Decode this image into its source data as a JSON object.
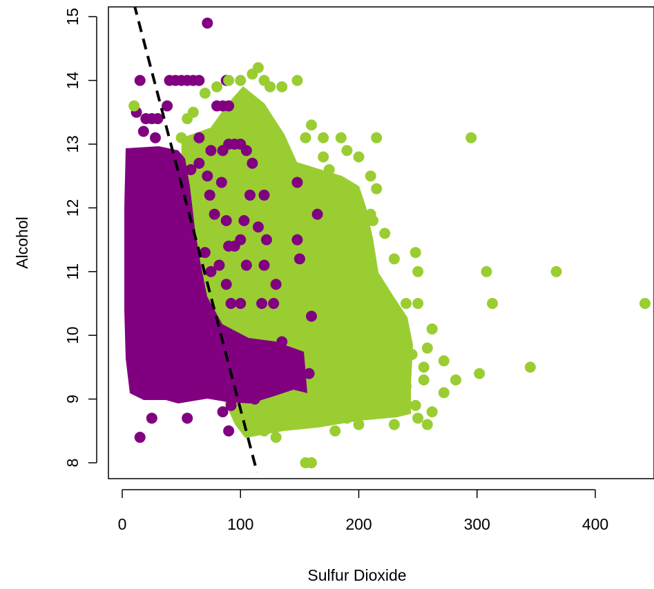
{
  "chart_data": {
    "type": "scatter",
    "xlabel": "Sulfur Dioxide",
    "ylabel": "Alcohol",
    "xlim": [
      -10,
      450
    ],
    "ylim": [
      7.75,
      15.2
    ],
    "x_ticks": [
      0,
      100,
      200,
      300,
      400
    ],
    "y_ticks": [
      8,
      9,
      10,
      11,
      12,
      13,
      14,
      15
    ],
    "colors": {
      "purple": "#800080",
      "green": "#9acd32",
      "line": "#000000"
    },
    "series": [
      {
        "color": "#800080",
        "points": [
          [
            72,
            14.9
          ],
          [
            15,
            14.0
          ],
          [
            40,
            14.0
          ],
          [
            45,
            14.0
          ],
          [
            50,
            14.0
          ],
          [
            55,
            14.0
          ],
          [
            60,
            14.0
          ],
          [
            65,
            14.0
          ],
          [
            88,
            14.0
          ],
          [
            80,
            13.6
          ],
          [
            85,
            13.6
          ],
          [
            90,
            13.6
          ],
          [
            38,
            13.6
          ],
          [
            12,
            13.5
          ],
          [
            20,
            13.4
          ],
          [
            25,
            13.4
          ],
          [
            30,
            13.4
          ],
          [
            18,
            13.2
          ],
          [
            28,
            13.1
          ],
          [
            65,
            13.1
          ],
          [
            75,
            12.9
          ],
          [
            85,
            12.9
          ],
          [
            90,
            13.0
          ],
          [
            95,
            13.0
          ],
          [
            100,
            13.0
          ],
          [
            105,
            12.9
          ],
          [
            110,
            12.7
          ],
          [
            65,
            12.7
          ],
          [
            58,
            12.6
          ],
          [
            72,
            12.5
          ],
          [
            84,
            12.4
          ],
          [
            148,
            12.4
          ],
          [
            108,
            12.2
          ],
          [
            120,
            12.2
          ],
          [
            74,
            12.2
          ],
          [
            78,
            11.9
          ],
          [
            88,
            11.8
          ],
          [
            103,
            11.8
          ],
          [
            165,
            11.9
          ],
          [
            115,
            11.7
          ],
          [
            122,
            11.5
          ],
          [
            100,
            11.5
          ],
          [
            90,
            11.4
          ],
          [
            95,
            11.4
          ],
          [
            148,
            11.5
          ],
          [
            150,
            11.2
          ],
          [
            70,
            11.3
          ],
          [
            105,
            11.1
          ],
          [
            82,
            11.1
          ],
          [
            120,
            11.1
          ],
          [
            75,
            11.0
          ],
          [
            88,
            10.8
          ],
          [
            130,
            10.8
          ],
          [
            118,
            10.5
          ],
          [
            128,
            10.5
          ],
          [
            160,
            10.3
          ],
          [
            100,
            10.5
          ],
          [
            92,
            10.5
          ],
          [
            135,
            9.9
          ],
          [
            110,
            9.7
          ],
          [
            130,
            9.7
          ],
          [
            115,
            9.6
          ],
          [
            125,
            9.5
          ],
          [
            145,
            9.7
          ],
          [
            150,
            9.5
          ],
          [
            158,
            9.4
          ],
          [
            135,
            9.2
          ],
          [
            145,
            9.3
          ],
          [
            112,
            9.0
          ],
          [
            85,
            8.8
          ],
          [
            92,
            8.9
          ],
          [
            25,
            8.7
          ],
          [
            55,
            8.7
          ],
          [
            90,
            8.5
          ],
          [
            15,
            8.4
          ],
          [
            95,
            9.6
          ],
          [
            70,
            9.8
          ]
        ]
      },
      {
        "color": "#9acd32",
        "points": [
          [
            10,
            13.6
          ],
          [
            70,
            13.8
          ],
          [
            80,
            13.9
          ],
          [
            90,
            14.0
          ],
          [
            100,
            14.0
          ],
          [
            110,
            14.1
          ],
          [
            115,
            14.2
          ],
          [
            120,
            14.0
          ],
          [
            125,
            13.9
          ],
          [
            135,
            13.9
          ],
          [
            148,
            14.0
          ],
          [
            60,
            13.5
          ],
          [
            55,
            13.4
          ],
          [
            50,
            13.1
          ],
          [
            160,
            13.3
          ],
          [
            155,
            13.1
          ],
          [
            170,
            13.1
          ],
          [
            185,
            13.1
          ],
          [
            215,
            13.1
          ],
          [
            295,
            13.1
          ],
          [
            190,
            12.9
          ],
          [
            200,
            12.8
          ],
          [
            210,
            12.5
          ],
          [
            215,
            12.3
          ],
          [
            210,
            11.9
          ],
          [
            212,
            11.8
          ],
          [
            222,
            11.6
          ],
          [
            230,
            11.2
          ],
          [
            248,
            11.3
          ],
          [
            250,
            11.0
          ],
          [
            240,
            10.5
          ],
          [
            250,
            10.5
          ],
          [
            262,
            10.1
          ],
          [
            258,
            9.8
          ],
          [
            255,
            9.5
          ],
          [
            255,
            9.3
          ],
          [
            248,
            8.9
          ],
          [
            250,
            8.7
          ],
          [
            258,
            8.6
          ],
          [
            262,
            8.8
          ],
          [
            272,
            9.1
          ],
          [
            272,
            9.6
          ],
          [
            282,
            9.3
          ],
          [
            302,
            9.4
          ],
          [
            308,
            11.0
          ],
          [
            313,
            10.5
          ],
          [
            345,
            9.5
          ],
          [
            367,
            11.0
          ],
          [
            442,
            10.5
          ],
          [
            160,
            8.0
          ],
          [
            155,
            8.0
          ],
          [
            130,
            8.4
          ],
          [
            120,
            8.5
          ],
          [
            110,
            8.6
          ],
          [
            180,
            8.5
          ],
          [
            165,
            8.7
          ],
          [
            200,
            8.6
          ],
          [
            230,
            8.6
          ],
          [
            175,
            12.6
          ],
          [
            185,
            12.4
          ],
          [
            195,
            12.2
          ],
          [
            170,
            12.8
          ],
          [
            180,
            12.1
          ],
          [
            225,
            10.4
          ],
          [
            235,
            10.0
          ],
          [
            245,
            9.7
          ],
          [
            240,
            9.2
          ],
          [
            230,
            9.0
          ],
          [
            220,
            8.8
          ],
          [
            190,
            8.7
          ],
          [
            205,
            10.8
          ],
          [
            198,
            11.3
          ],
          [
            188,
            11.5
          ],
          [
            176,
            11.0
          ],
          [
            168,
            10.6
          ]
        ]
      }
    ],
    "fit_line": {
      "x": [
        10,
        114
      ],
      "y": [
        15.2,
        7.85
      ],
      "style": "dashed"
    }
  }
}
